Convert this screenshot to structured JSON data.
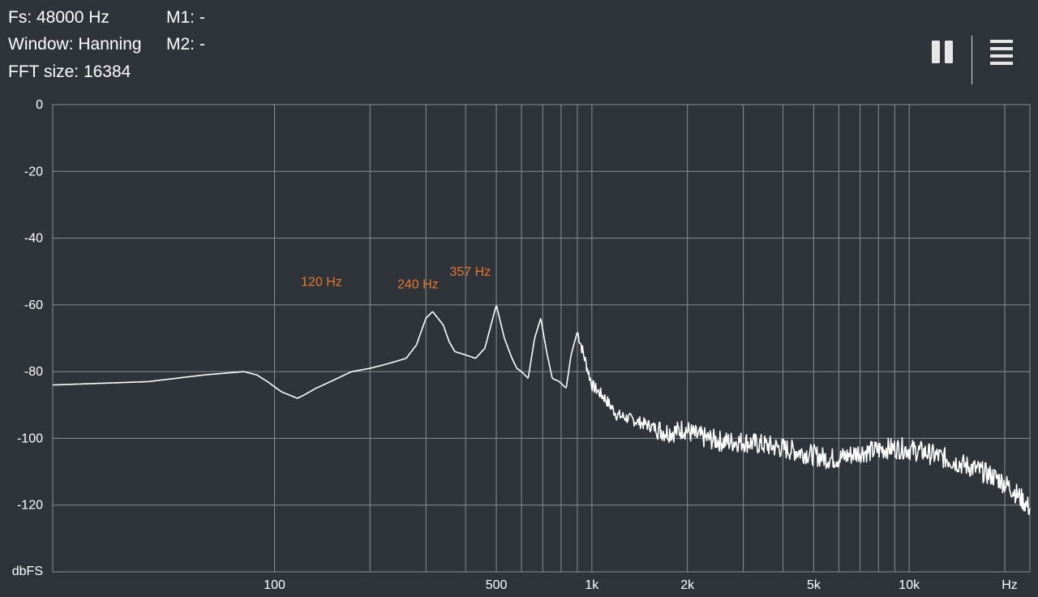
{
  "header": {
    "fs_label": "Fs: 48000 Hz",
    "window_label": "Window: Hanning",
    "fft_label": "FFT size: 16384",
    "m1_label": "M1: -",
    "m2_label": "M2: -"
  },
  "toolbar": {
    "pause_icon": "pause-icon",
    "menu_icon": "menu-icon"
  },
  "colors": {
    "background": "#2f333a",
    "grid": "#8a8f96",
    "trace": "#ffffff",
    "peak_label": "#e8772e"
  },
  "chart_data": {
    "type": "line",
    "xscale": "log",
    "xlim": [
      20,
      24000
    ],
    "ylim": [
      -140,
      0
    ],
    "ylabel": "dbFS",
    "xlabel": "Hz",
    "yticks": [
      0,
      -20,
      -40,
      -60,
      -80,
      -100,
      -120
    ],
    "xticks": [
      {
        "value": 100,
        "label": "100"
      },
      {
        "value": 500,
        "label": "500"
      },
      {
        "value": 1000,
        "label": "1k"
      },
      {
        "value": 2000,
        "label": "2k"
      },
      {
        "value": 5000,
        "label": "5k"
      },
      {
        "value": 10000,
        "label": "10k"
      }
    ],
    "gridlines_x": [
      100,
      200,
      300,
      400,
      500,
      600,
      700,
      800,
      900,
      1000,
      2000,
      3000,
      4000,
      5000,
      6000,
      7000,
      8000,
      9000,
      10000,
      20000
    ],
    "grid": true,
    "peaks": [
      {
        "freq": 120,
        "db": -58,
        "label": "120 Hz"
      },
      {
        "freq": 240,
        "db": -58.5,
        "label": "240 Hz"
      },
      {
        "freq": 357,
        "db": -62,
        "label": "357 Hz"
      }
    ],
    "series": [
      {
        "x": [
          20,
          40,
          60,
          80,
          88,
          95,
          105,
          118,
          124,
          135,
          150,
          175,
          200,
          220,
          240,
          260,
          280,
          300,
          315,
          340,
          355,
          370,
          400,
          430,
          460,
          475,
          500,
          530,
          560,
          580,
          600,
          630,
          660,
          690,
          720,
          750,
          790,
          830,
          860,
          900,
          1000,
          1100,
          1200,
          1300,
          1500,
          1700,
          1850,
          1950,
          2100,
          2300,
          2600,
          3000,
          3500,
          4000,
          4500,
          5000,
          5500,
          6000,
          6500,
          7000,
          7500,
          8500,
          9500,
          11000,
          13000,
          16000,
          19000,
          21000,
          22000,
          23000,
          24000
        ],
        "y": [
          -84,
          -83,
          -81,
          -80,
          -81,
          -83,
          -86,
          -88,
          -87,
          -85,
          -83,
          -80,
          -79,
          -78,
          -77,
          -76,
          -72,
          -64,
          -62,
          -66,
          -71,
          -74,
          -75,
          -76,
          -73,
          -68,
          -60,
          -70,
          -76,
          -79,
          -80,
          -82,
          -70,
          -64,
          -74,
          -82,
          -83,
          -85,
          -75,
          -68,
          -84,
          -88,
          -93,
          -94,
          -96,
          -98,
          -98,
          -97,
          -99,
          -100,
          -101,
          -101,
          -102,
          -103,
          -104,
          -105,
          -106,
          -106,
          -105,
          -104,
          -104,
          -103,
          -103,
          -104,
          -106,
          -109,
          -112,
          -115,
          -117,
          -119,
          -121
        ]
      }
    ]
  }
}
